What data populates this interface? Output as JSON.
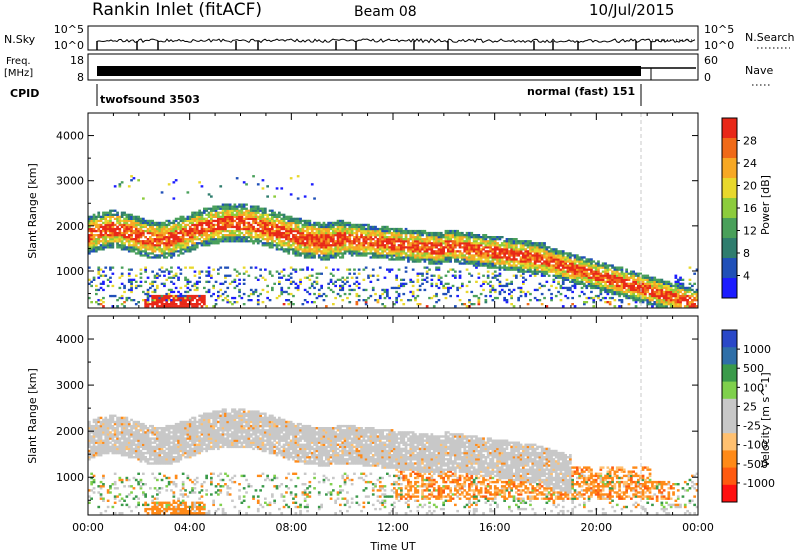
{
  "header": {
    "station": "Rankin Inlet (fitACF)",
    "beam": "Beam 08",
    "date": "10/Jul/2015"
  },
  "status_panels": {
    "nsky_label": "N.Sky",
    "nsky_ticks": [
      "10^5",
      "10^0"
    ],
    "nsearch_label": "N.Search",
    "nsearch_ticks": [
      "10^5",
      "10^0"
    ],
    "freq_label_1": "Freq.",
    "freq_label_2": "[MHz]",
    "freq_ticks": [
      "18",
      "8"
    ],
    "nave_label": "Nave",
    "nave_ticks": [
      "60",
      "0"
    ],
    "cpid_label": "CPID",
    "cpid_left": "twofsound 3503",
    "cpid_right": "normal (fast) 151"
  },
  "colors": {
    "power_scale": [
      "#1c1cff",
      "#2050b8",
      "#2f7d6e",
      "#49a05a",
      "#8ccc3c",
      "#e8d82c",
      "#f7a824",
      "#f06a18",
      "#e82818"
    ],
    "velocity_scale": [
      "#ff1010",
      "#ff5a10",
      "#ff8a18",
      "#ffc070",
      "#c8c8c8",
      "#c8c8c8",
      "#7fd04c",
      "#3a9a4a",
      "#2f6fa8",
      "#2a48c8"
    ]
  },
  "chart_data": [
    {
      "type": "heatmap",
      "name": "power",
      "xlabel": "",
      "ylabel": "Slant Range [km]",
      "xlim_hours": [
        0,
        24
      ],
      "ylim": [
        180,
        4500
      ],
      "yticks": [
        "4000",
        "3000",
        "2000",
        "1000"
      ],
      "colorbar_label": "Power [dB]",
      "colorbar_ticks": [
        "28",
        "24",
        "20",
        "16",
        "12",
        "8",
        "4"
      ]
    },
    {
      "type": "heatmap",
      "name": "velocity",
      "xlabel": "Time UT",
      "ylabel": "Slant Range [km]",
      "xlim_hours": [
        0,
        24
      ],
      "ylim": [
        180,
        4500
      ],
      "xticks": [
        "00:00",
        "04:00",
        "08:00",
        "12:00",
        "16:00",
        "20:00",
        "00:00"
      ],
      "yticks": [
        "4000",
        "3000",
        "2000",
        "1000"
      ],
      "colorbar_label": "Velocity [m s^-1]",
      "colorbar_ticks": [
        "1000",
        "500",
        "100",
        "25",
        "-25",
        "-100",
        "-500",
        "-1000"
      ]
    }
  ]
}
